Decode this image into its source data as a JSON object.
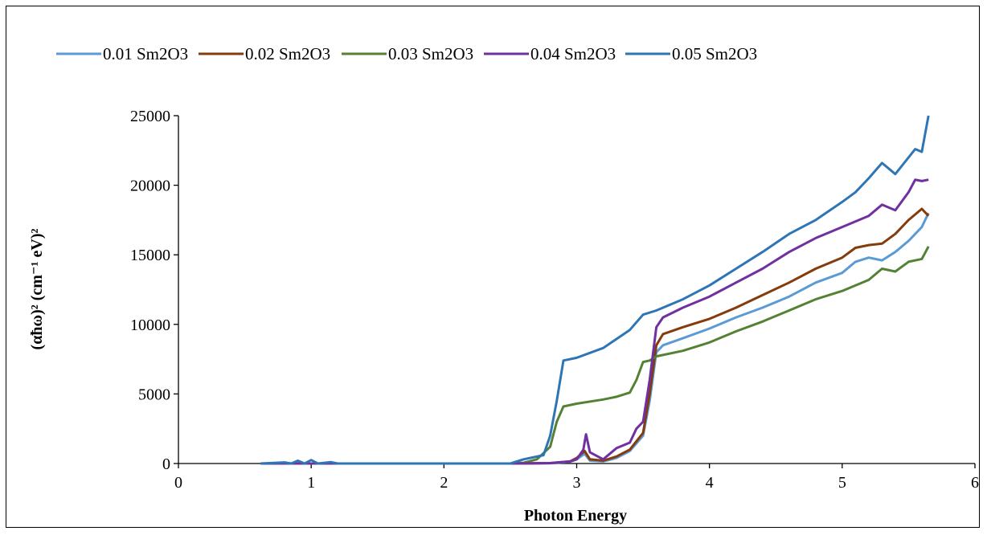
{
  "chart_data": {
    "type": "line",
    "title": "",
    "xlabel": "Photon Energy",
    "ylabel": "(αħω)² (cm⁻¹ eV)²",
    "xlim": [
      0,
      6
    ],
    "ylim": [
      0,
      25000
    ],
    "x_ticks": [
      "0",
      "1",
      "2",
      "3",
      "4",
      "5",
      "6"
    ],
    "y_ticks": [
      "0",
      "5000",
      "10000",
      "15000",
      "20000",
      "25000"
    ],
    "grid": false,
    "legend_position": "top",
    "series": [
      {
        "name": "0.01 Sm2O3",
        "color": "#5B9BD5",
        "points": [
          [
            0.62,
            0
          ],
          [
            2.5,
            0
          ],
          [
            2.8,
            20
          ],
          [
            2.95,
            120
          ],
          [
            3.0,
            300
          ],
          [
            3.06,
            700
          ],
          [
            3.1,
            200
          ],
          [
            3.2,
            150
          ],
          [
            3.3,
            400
          ],
          [
            3.4,
            900
          ],
          [
            3.5,
            2000
          ],
          [
            3.55,
            4500
          ],
          [
            3.6,
            8000
          ],
          [
            3.65,
            8500
          ],
          [
            3.8,
            9000
          ],
          [
            4.0,
            9700
          ],
          [
            4.2,
            10500
          ],
          [
            4.4,
            11200
          ],
          [
            4.6,
            12000
          ],
          [
            4.8,
            13000
          ],
          [
            5.0,
            13700
          ],
          [
            5.1,
            14500
          ],
          [
            5.2,
            14800
          ],
          [
            5.3,
            14600
          ],
          [
            5.4,
            15200
          ],
          [
            5.5,
            16000
          ],
          [
            5.6,
            17000
          ],
          [
            5.65,
            18000
          ]
        ]
      },
      {
        "name": "0.02 Sm2O3",
        "color": "#843C0C",
        "points": [
          [
            0.62,
            0
          ],
          [
            2.5,
            0
          ],
          [
            2.8,
            30
          ],
          [
            2.95,
            150
          ],
          [
            3.0,
            400
          ],
          [
            3.06,
            900
          ],
          [
            3.1,
            300
          ],
          [
            3.2,
            200
          ],
          [
            3.3,
            500
          ],
          [
            3.4,
            1000
          ],
          [
            3.5,
            2200
          ],
          [
            3.55,
            5000
          ],
          [
            3.6,
            8500
          ],
          [
            3.65,
            9300
          ],
          [
            3.8,
            9800
          ],
          [
            4.0,
            10400
          ],
          [
            4.2,
            11200
          ],
          [
            4.4,
            12100
          ],
          [
            4.6,
            13000
          ],
          [
            4.8,
            14000
          ],
          [
            5.0,
            14800
          ],
          [
            5.1,
            15500
          ],
          [
            5.2,
            15700
          ],
          [
            5.3,
            15800
          ],
          [
            5.4,
            16500
          ],
          [
            5.5,
            17500
          ],
          [
            5.6,
            18300
          ],
          [
            5.65,
            17800
          ]
        ]
      },
      {
        "name": "0.03 Sm2O3",
        "color": "#548235",
        "points": [
          [
            0.62,
            0
          ],
          [
            2.5,
            0
          ],
          [
            2.6,
            50
          ],
          [
            2.7,
            300
          ],
          [
            2.8,
            1200
          ],
          [
            2.85,
            3000
          ],
          [
            2.9,
            4100
          ],
          [
            3.0,
            4300
          ],
          [
            3.2,
            4600
          ],
          [
            3.3,
            4800
          ],
          [
            3.4,
            5100
          ],
          [
            3.45,
            6000
          ],
          [
            3.5,
            7300
          ],
          [
            3.55,
            7400
          ],
          [
            3.6,
            7700
          ],
          [
            3.8,
            8100
          ],
          [
            4.0,
            8700
          ],
          [
            4.2,
            9500
          ],
          [
            4.4,
            10200
          ],
          [
            4.6,
            11000
          ],
          [
            4.8,
            11800
          ],
          [
            5.0,
            12400
          ],
          [
            5.2,
            13200
          ],
          [
            5.3,
            14000
          ],
          [
            5.4,
            13800
          ],
          [
            5.5,
            14500
          ],
          [
            5.6,
            14700
          ],
          [
            5.65,
            15600
          ]
        ]
      },
      {
        "name": "0.04 Sm2O3",
        "color": "#7030A0",
        "points": [
          [
            0.62,
            0
          ],
          [
            2.5,
            0
          ],
          [
            2.8,
            30
          ],
          [
            2.95,
            150
          ],
          [
            3.0,
            300
          ],
          [
            3.05,
            1000
          ],
          [
            3.07,
            2100
          ],
          [
            3.1,
            800
          ],
          [
            3.2,
            300
          ],
          [
            3.3,
            1100
          ],
          [
            3.4,
            1500
          ],
          [
            3.45,
            2500
          ],
          [
            3.5,
            3000
          ],
          [
            3.55,
            6000
          ],
          [
            3.6,
            9800
          ],
          [
            3.65,
            10500
          ],
          [
            3.8,
            11200
          ],
          [
            4.0,
            12000
          ],
          [
            4.2,
            13000
          ],
          [
            4.4,
            14000
          ],
          [
            4.6,
            15200
          ],
          [
            4.8,
            16200
          ],
          [
            5.0,
            17000
          ],
          [
            5.2,
            17800
          ],
          [
            5.3,
            18600
          ],
          [
            5.4,
            18200
          ],
          [
            5.5,
            19500
          ],
          [
            5.55,
            20400
          ],
          [
            5.6,
            20300
          ],
          [
            5.65,
            20400
          ]
        ]
      },
      {
        "name": "0.05 Sm2O3",
        "color": "#2E75B6",
        "points": [
          [
            0.62,
            0
          ],
          [
            0.8,
            80
          ],
          [
            0.85,
            0
          ],
          [
            0.9,
            200
          ],
          [
            0.95,
            0
          ],
          [
            1.0,
            250
          ],
          [
            1.05,
            0
          ],
          [
            1.15,
            100
          ],
          [
            1.2,
            0
          ],
          [
            2.5,
            0
          ],
          [
            2.6,
            300
          ],
          [
            2.75,
            600
          ],
          [
            2.8,
            2000
          ],
          [
            2.85,
            4500
          ],
          [
            2.9,
            7400
          ],
          [
            3.0,
            7600
          ],
          [
            3.2,
            8300
          ],
          [
            3.4,
            9600
          ],
          [
            3.5,
            10700
          ],
          [
            3.6,
            11000
          ],
          [
            3.8,
            11800
          ],
          [
            4.0,
            12800
          ],
          [
            4.2,
            14000
          ],
          [
            4.4,
            15200
          ],
          [
            4.6,
            16500
          ],
          [
            4.8,
            17500
          ],
          [
            5.0,
            18800
          ],
          [
            5.1,
            19500
          ],
          [
            5.2,
            20500
          ],
          [
            5.3,
            21600
          ],
          [
            5.4,
            20800
          ],
          [
            5.5,
            22000
          ],
          [
            5.55,
            22600
          ],
          [
            5.6,
            22400
          ],
          [
            5.65,
            25000
          ]
        ]
      }
    ]
  }
}
